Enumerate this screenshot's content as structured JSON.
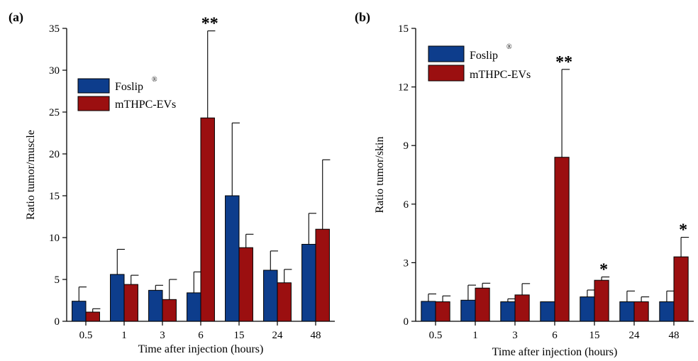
{
  "chart_data": [
    {
      "type": "bar",
      "panel_label": "(a)",
      "xlabel": "Time after injection (hours)",
      "ylabel": "Ratio tumor/muscle",
      "ylim": [
        0,
        35
      ],
      "yticks": [
        0,
        5,
        10,
        15,
        20,
        25,
        30,
        35
      ],
      "categories": [
        "0.5",
        "1",
        "3",
        "6",
        "15",
        "24",
        "48"
      ],
      "legend_position": "upper-left",
      "series": [
        {
          "name": "Foslip",
          "name_superscript": "®",
          "color": "#0d3d8c",
          "values": [
            2.4,
            5.6,
            3.7,
            3.4,
            15.0,
            6.1,
            9.2
          ],
          "errors": [
            1.7,
            3.0,
            0.6,
            2.5,
            8.7,
            2.3,
            3.7
          ]
        },
        {
          "name": "mTHPC-EVs",
          "name_superscript": "",
          "color": "#9b0f10",
          "values": [
            1.1,
            4.4,
            2.6,
            24.3,
            8.8,
            4.6,
            11.0
          ],
          "errors": [
            0.4,
            1.1,
            2.4,
            10.4,
            1.6,
            1.6,
            8.3
          ]
        }
      ],
      "annotations": [
        {
          "category": "6",
          "series": 1,
          "text": "**"
        }
      ]
    },
    {
      "type": "bar",
      "panel_label": "(b)",
      "xlabel": "Time after injection (hours)",
      "ylabel": "Ratio tumor/skin",
      "ylim": [
        0,
        15
      ],
      "yticks": [
        0,
        3,
        6,
        9,
        12,
        15
      ],
      "categories": [
        "0.5",
        "1",
        "3",
        "6",
        "15",
        "24",
        "48"
      ],
      "legend_position": "upper-left",
      "series": [
        {
          "name": "Foslip",
          "name_superscript": "®",
          "color": "#0d3d8c",
          "values": [
            1.02,
            1.08,
            1.0,
            1.0,
            1.25,
            1.0,
            1.0
          ],
          "errors": [
            0.38,
            0.77,
            0.15,
            0.0,
            0.35,
            0.55,
            0.55
          ]
        },
        {
          "name": "mTHPC-EVs",
          "name_superscript": "",
          "color": "#9b0f10",
          "values": [
            1.0,
            1.7,
            1.35,
            8.4,
            2.1,
            1.0,
            3.3
          ],
          "errors": [
            0.3,
            0.25,
            0.58,
            4.5,
            0.17,
            0.25,
            1.0
          ]
        }
      ],
      "annotations": [
        {
          "category": "6",
          "series": 1,
          "text": "**"
        },
        {
          "category": "15",
          "series": 1,
          "text": "*"
        },
        {
          "category": "48",
          "series": 1,
          "text": "*"
        }
      ]
    }
  ]
}
